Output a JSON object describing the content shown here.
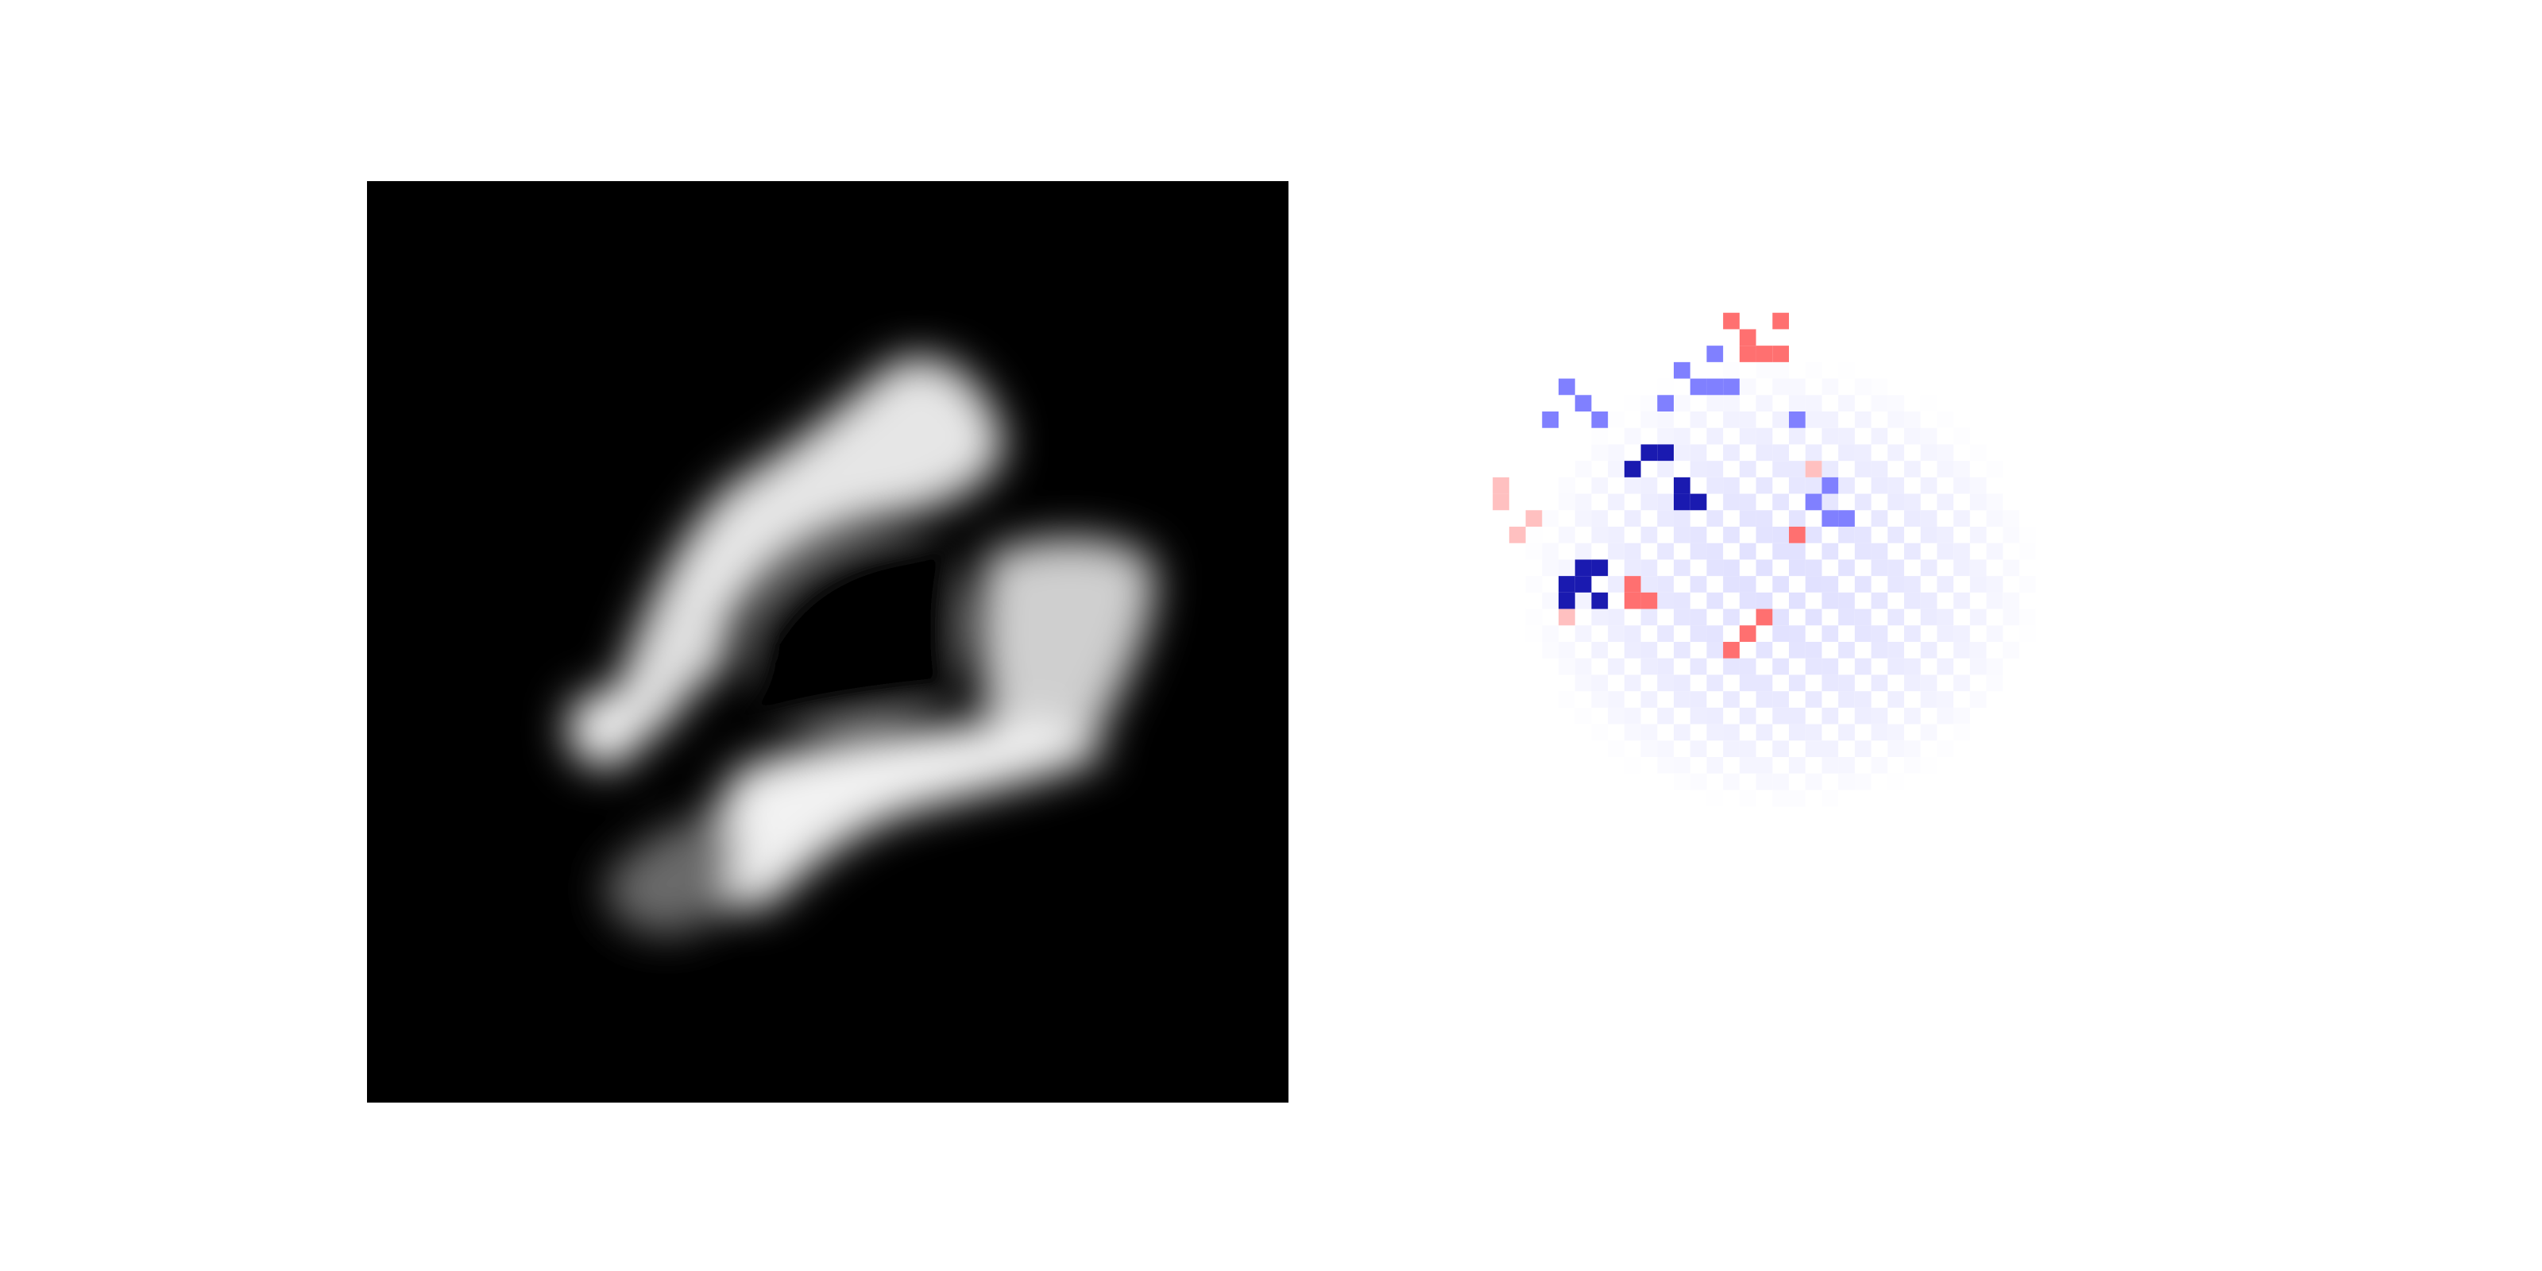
{
  "figure": {
    "panels": [
      {
        "kind": "grayscale-image",
        "colormap": "gray",
        "background": "#000000"
      },
      {
        "kind": "attribution-heatmap",
        "colormap": "seismic",
        "background": "#ffffff",
        "positive_color": "#ff0000",
        "negative_color": "#00008b"
      }
    ]
  }
}
